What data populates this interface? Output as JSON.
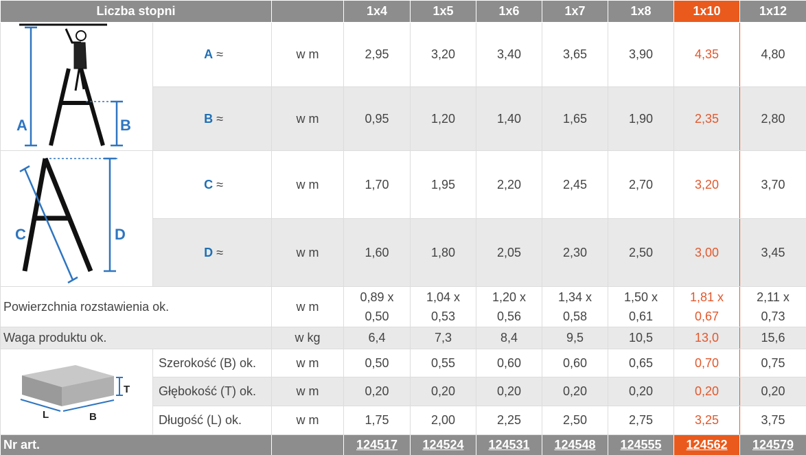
{
  "header": {
    "title": "Liczba stopni",
    "columns": [
      "1x4",
      "1x5",
      "1x6",
      "1x7",
      "1x8",
      "1x10",
      "1x12"
    ]
  },
  "highlight_column": 5,
  "diagram_labels": {
    "ladder_top": [
      "A",
      "B"
    ],
    "ladder_bottom": [
      "C",
      "D"
    ],
    "box": [
      "T",
      "L",
      "B"
    ]
  },
  "dimension_rows": [
    {
      "label": "A",
      "approx": "≈",
      "unit": "w m",
      "values": [
        "2,95",
        "3,20",
        "3,40",
        "3,65",
        "3,90",
        "4,35",
        "4,80"
      ]
    },
    {
      "label": "B",
      "approx": "≈",
      "unit": "w m",
      "values": [
        "0,95",
        "1,20",
        "1,40",
        "1,65",
        "1,90",
        "2,35",
        "2,80"
      ]
    },
    {
      "label": "C",
      "approx": "≈",
      "unit": "w m",
      "values": [
        "1,70",
        "1,95",
        "2,20",
        "2,45",
        "2,70",
        "3,20",
        "3,70"
      ]
    },
    {
      "label": "D",
      "approx": "≈",
      "unit": "w m",
      "values": [
        "1,60",
        "1,80",
        "2,05",
        "2,30",
        "2,50",
        "3,00",
        "3,45"
      ]
    }
  ],
  "area_row": {
    "label": "Powierzchnia rozstawienia ok.",
    "unit": "w m",
    "values": [
      [
        "0,89 x",
        "0,50"
      ],
      [
        "1,04 x",
        "0,53"
      ],
      [
        "1,20 x",
        "0,56"
      ],
      [
        "1,34 x",
        "0,58"
      ],
      [
        "1,50 x",
        "0,61"
      ],
      [
        "1,81 x",
        "0,67"
      ],
      [
        "2,11 x",
        "0,73"
      ]
    ]
  },
  "weight_row": {
    "label": "Waga produktu ok.",
    "unit": "w kg",
    "values": [
      "6,4",
      "7,3",
      "8,4",
      "9,5",
      "10,5",
      "13,0",
      "15,6"
    ]
  },
  "package_rows": [
    {
      "label": "Szerokość (B) ok.",
      "unit": "w m",
      "values": [
        "0,50",
        "0,55",
        "0,60",
        "0,60",
        "0,65",
        "0,70",
        "0,75"
      ]
    },
    {
      "label": "Głębokość (T) ok.",
      "unit": "w m",
      "values": [
        "0,20",
        "0,20",
        "0,20",
        "0,20",
        "0,20",
        "0,20",
        "0,20"
      ]
    },
    {
      "label": "Długość (L) ok.",
      "unit": "w m",
      "values": [
        "1,75",
        "2,00",
        "2,25",
        "2,50",
        "2,75",
        "3,25",
        "3,75"
      ]
    }
  ],
  "article_row": {
    "label": "Nr art.",
    "values": [
      "124517",
      "124524",
      "124531",
      "124548",
      "124555",
      "124562",
      "124579"
    ]
  }
}
